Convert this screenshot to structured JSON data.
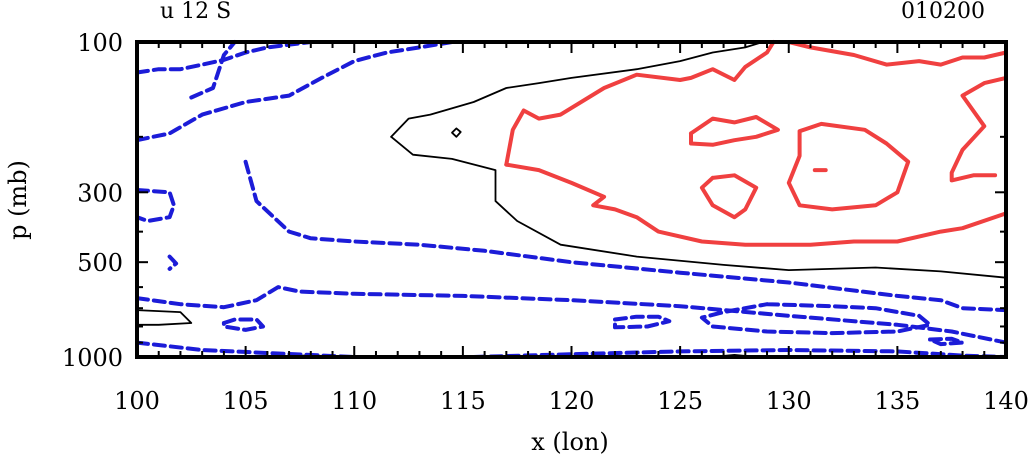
{
  "chart_data": {
    "type": "contour",
    "title_left": "u 12 S",
    "title_right": "010200",
    "xlabel": "x (lon)",
    "ylabel": "p (mb)",
    "xlim": [
      100,
      140
    ],
    "ylim": [
      1000,
      100
    ],
    "y_scale": "log",
    "x_ticks": [
      100,
      105,
      110,
      115,
      120,
      125,
      130,
      135,
      140
    ],
    "x_tick_labels": [
      "100",
      "105",
      "110",
      "115",
      "120",
      "125",
      "130",
      "135",
      "140"
    ],
    "y_ticks": [
      100,
      300,
      500,
      1000
    ],
    "y_tick_labels": [
      "100",
      "300",
      "500",
      "1000"
    ],
    "contour_styles": {
      "positive": "#f04040",
      "zero": "#000000",
      "negative": "#1c1cd8"
    },
    "contours": [
      {
        "level": "zero",
        "points": [
          [
            111.7,
            200
          ],
          [
            112.5,
            175
          ],
          [
            113.5,
            170
          ],
          [
            115.5,
            155
          ],
          [
            117,
            140
          ],
          [
            118.5,
            135
          ],
          [
            120,
            130
          ],
          [
            123,
            122
          ],
          [
            125,
            115
          ],
          [
            126.5,
            108
          ],
          [
            128,
            104
          ],
          [
            128.8,
            100
          ]
        ]
      },
      {
        "level": "zero",
        "points": [
          [
            111.7,
            200
          ],
          [
            112.7,
            228
          ],
          [
            114.5,
            235
          ],
          [
            116.5,
            255
          ],
          [
            116.5,
            320
          ],
          [
            117.5,
            370
          ],
          [
            119.5,
            440
          ],
          [
            123,
            480
          ],
          [
            127,
            510
          ],
          [
            130,
            530
          ],
          [
            134,
            520
          ],
          [
            137,
            535
          ],
          [
            140,
            560
          ]
        ]
      },
      {
        "level": "zero",
        "points": [
          [
            114.7,
            188
          ],
          [
            114.9,
            193
          ],
          [
            114.7,
            200
          ],
          [
            114.5,
            194
          ],
          [
            114.7,
            188
          ]
        ]
      },
      {
        "level": "zero",
        "points": [
          [
            100,
            710
          ],
          [
            102,
            720
          ],
          [
            102.5,
            780
          ],
          [
            101,
            790
          ],
          [
            100,
            790
          ]
        ]
      },
      {
        "level": "zero",
        "points": [
          [
            107,
            1000
          ],
          [
            108,
            985
          ],
          [
            109,
            1000
          ]
        ]
      },
      {
        "level": "zero",
        "points": [
          [
            126.5,
            1000
          ],
          [
            127.5,
            985
          ],
          [
            128.5,
            1000
          ]
        ]
      },
      {
        "level": "positive",
        "points": [
          [
            117,
            245
          ],
          [
            117.3,
            190
          ],
          [
            117.8,
            165
          ],
          [
            118.5,
            175
          ],
          [
            119.5,
            170
          ],
          [
            121.5,
            140
          ],
          [
            123,
            127
          ],
          [
            125,
            132
          ],
          [
            125.5,
            130
          ],
          [
            126.5,
            122
          ],
          [
            127.5,
            132
          ],
          [
            128,
            120
          ],
          [
            129,
            108
          ],
          [
            129.3,
            100
          ]
        ]
      },
      {
        "level": "positive",
        "points": [
          [
            117,
            245
          ],
          [
            118.5,
            255
          ],
          [
            120,
            280
          ],
          [
            121.5,
            310
          ],
          [
            121,
            330
          ],
          [
            122,
            340
          ],
          [
            123,
            360
          ],
          [
            124,
            400
          ],
          [
            126,
            430
          ],
          [
            128,
            440
          ],
          [
            131,
            440
          ],
          [
            133,
            430
          ],
          [
            135,
            430
          ],
          [
            137,
            400
          ],
          [
            138,
            390
          ],
          [
            140,
            350
          ]
        ]
      },
      {
        "level": "positive",
        "points": [
          [
            130,
            100
          ],
          [
            131,
            104
          ],
          [
            133,
            110
          ],
          [
            134.5,
            118
          ],
          [
            136,
            115
          ],
          [
            137,
            118
          ],
          [
            138,
            112
          ],
          [
            139,
            112
          ],
          [
            140,
            108
          ]
        ]
      },
      {
        "level": "positive",
        "points": [
          [
            140,
            130
          ],
          [
            139,
            135
          ],
          [
            138,
            148
          ],
          [
            139,
            185
          ],
          [
            138,
            220
          ],
          [
            137.5,
            260
          ],
          [
            137.5,
            275
          ],
          [
            138.5,
            265
          ],
          [
            139.5,
            265
          ]
        ]
      },
      {
        "level": "positive",
        "points": [
          [
            125.5,
            195
          ],
          [
            126.5,
            175
          ],
          [
            127.5,
            180
          ],
          [
            128.5,
            173
          ],
          [
            129.5,
            190
          ],
          [
            128.5,
            200
          ],
          [
            127.5,
            205
          ],
          [
            126.5,
            212
          ],
          [
            125.5,
            210
          ],
          [
            125.5,
            195
          ]
        ]
      },
      {
        "level": "positive",
        "points": [
          [
            126.5,
            270
          ],
          [
            127.5,
            265
          ],
          [
            128.5,
            290
          ],
          [
            128,
            340
          ],
          [
            127.5,
            360
          ],
          [
            126.5,
            330
          ],
          [
            126,
            290
          ],
          [
            126.5,
            270
          ]
        ]
      },
      {
        "level": "positive",
        "points": [
          [
            130.5,
            192
          ],
          [
            131.5,
            182
          ],
          [
            133.5,
            190
          ],
          [
            134.5,
            210
          ],
          [
            135.5,
            240
          ],
          [
            135,
            300
          ],
          [
            134,
            330
          ],
          [
            132,
            340
          ],
          [
            130.5,
            330
          ],
          [
            130,
            280
          ],
          [
            130.5,
            230
          ],
          [
            130.5,
            192
          ]
        ]
      },
      {
        "level": "positive",
        "points": [
          [
            131.2,
            255
          ],
          [
            131.7,
            255
          ]
        ]
      },
      {
        "level": "negative",
        "points": [
          [
            102.5,
            150
          ],
          [
            103.5,
            140
          ],
          [
            104,
            110
          ],
          [
            104.5,
            100
          ]
        ]
      },
      {
        "level": "negative",
        "points": [
          [
            100,
            205
          ],
          [
            101.5,
            195
          ],
          [
            103,
            170
          ],
          [
            105,
            155
          ],
          [
            107,
            148
          ],
          [
            108.5,
            130
          ],
          [
            110,
            115
          ],
          [
            111.5,
            108
          ],
          [
            113,
            104
          ],
          [
            114.5,
            100
          ]
        ]
      },
      {
        "level": "negative",
        "points": [
          [
            100,
            125
          ],
          [
            101,
            122
          ],
          [
            102,
            122
          ],
          [
            103,
            118
          ],
          [
            104,
            114
          ],
          [
            105,
            108
          ],
          [
            106,
            104
          ],
          [
            107,
            102
          ],
          [
            108,
            100
          ]
        ]
      },
      {
        "level": "negative",
        "points": [
          [
            100,
            295
          ],
          [
            101.5,
            300
          ],
          [
            101.7,
            330
          ],
          [
            101.5,
            360
          ],
          [
            100.5,
            370
          ],
          [
            100,
            360
          ]
        ]
      },
      {
        "level": "negative",
        "points": [
          [
            101.5,
            480
          ],
          [
            101.8,
            505
          ],
          [
            101.5,
            525
          ]
        ]
      },
      {
        "level": "negative",
        "points": [
          [
            100,
            650
          ],
          [
            102,
            680
          ],
          [
            104,
            695
          ],
          [
            105.5,
            660
          ],
          [
            106.5,
            600
          ],
          [
            107.5,
            620
          ],
          [
            110,
            630
          ],
          [
            115,
            640
          ],
          [
            120,
            660
          ],
          [
            125,
            690
          ],
          [
            130,
            740
          ],
          [
            135,
            790
          ],
          [
            137.5,
            830
          ],
          [
            140,
            900
          ]
        ]
      },
      {
        "level": "negative",
        "points": [
          [
            105,
            240
          ],
          [
            105.5,
            320
          ],
          [
            107,
            400
          ],
          [
            108,
            420
          ],
          [
            110,
            430
          ],
          [
            113,
            440
          ],
          [
            116,
            460
          ],
          [
            120,
            500
          ],
          [
            125,
            540
          ],
          [
            130,
            580
          ],
          [
            135,
            640
          ],
          [
            137,
            660
          ],
          [
            138,
            700
          ],
          [
            140,
            710
          ]
        ]
      },
      {
        "level": "negative",
        "points": [
          [
            104,
            780
          ],
          [
            104.5,
            760
          ],
          [
            105.5,
            760
          ],
          [
            105.8,
            800
          ],
          [
            105,
            820
          ],
          [
            104,
            800
          ],
          [
            104,
            780
          ]
        ]
      },
      {
        "level": "negative",
        "points": [
          [
            100,
            900
          ],
          [
            103,
            950
          ],
          [
            110,
            1000
          ]
        ]
      },
      {
        "level": "negative",
        "points": [
          [
            115.5,
            1000
          ],
          [
            120,
            980
          ],
          [
            125,
            960
          ],
          [
            130,
            950
          ],
          [
            135,
            960
          ],
          [
            138,
            990
          ],
          [
            140,
            1000
          ]
        ]
      },
      {
        "level": "negative",
        "points": [
          [
            129,
            680
          ],
          [
            132,
            690
          ],
          [
            134,
            700
          ],
          [
            136,
            740
          ],
          [
            136.5,
            790
          ],
          [
            135,
            830
          ],
          [
            132,
            840
          ],
          [
            129,
            830
          ],
          [
            126.5,
            800
          ],
          [
            126,
            750
          ],
          [
            127,
            720
          ],
          [
            129,
            680
          ]
        ]
      },
      {
        "level": "negative",
        "points": [
          [
            122,
            760
          ],
          [
            123,
            745
          ],
          [
            124,
            745
          ],
          [
            124.5,
            770
          ],
          [
            123.5,
            800
          ],
          [
            122,
            805
          ],
          [
            122,
            780
          ],
          [
            122,
            760
          ]
        ]
      },
      {
        "level": "negative",
        "points": [
          [
            136.5,
            880
          ],
          [
            137.5,
            875
          ],
          [
            138,
            900
          ],
          [
            137,
            910
          ],
          [
            136.5,
            880
          ]
        ]
      }
    ]
  }
}
